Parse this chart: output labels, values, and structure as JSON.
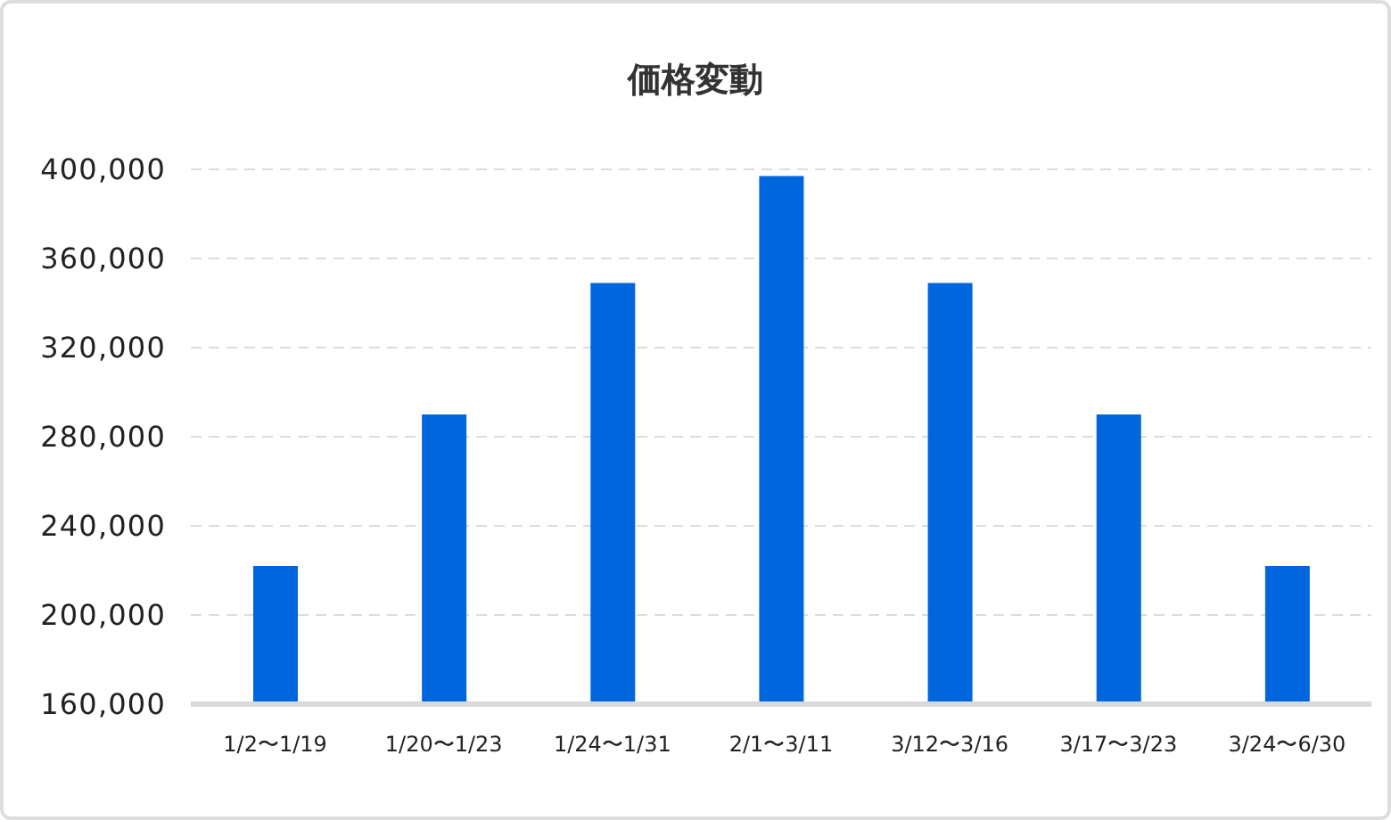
{
  "chart_data": {
    "type": "bar",
    "title": "価格変動",
    "categories": [
      "1/2〜1/19",
      "1/20〜1/23",
      "1/24〜1/31",
      "2/1〜3/11",
      "3/12〜3/16",
      "3/17〜3/23",
      "3/24〜6/30"
    ],
    "values": [
      222000,
      290000,
      349000,
      397000,
      349000,
      290000,
      222000
    ],
    "color": "#0066dd",
    "ylim": [
      160000,
      400000
    ],
    "yticks": [
      {
        "value": 160000,
        "label": "160,000"
      },
      {
        "value": 200000,
        "label": "200,000"
      },
      {
        "value": 240000,
        "label": "240,000"
      },
      {
        "value": 280000,
        "label": "280,000"
      },
      {
        "value": 320000,
        "label": "320,000"
      },
      {
        "value": 360000,
        "label": "360,000"
      },
      {
        "value": 400000,
        "label": "400,000"
      }
    ],
    "grid": "y"
  }
}
